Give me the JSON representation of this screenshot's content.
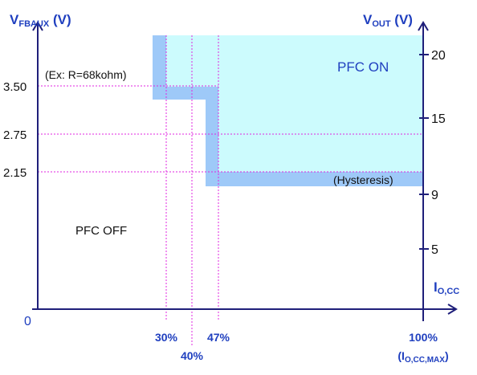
{
  "diagram": {
    "y_left_label": {
      "main": "V",
      "sub": "FBAUX",
      "tail": " (V)"
    },
    "y_right_label": {
      "main": "V",
      "sub": "OUT",
      "tail": " (V)"
    },
    "x_current_label": {
      "main": "I",
      "sub": "O,CC"
    },
    "x_max_label": {
      "main": "(I",
      "sub": "O,CC,MAX",
      "tail": ")"
    },
    "origin_label": "0",
    "left_ticks": [
      "3.50",
      "2.75",
      "2.15"
    ],
    "right_ticks": [
      "20",
      "15",
      "9",
      "5"
    ],
    "bottom_ticks": [
      "30%",
      "40%",
      "47%",
      "100%"
    ],
    "example_note": "(Ex: R=68kohm)",
    "region_on": "PFC ON",
    "region_off": "PFC OFF",
    "hysteresis_note": "(Hysteresis)",
    "colors": {
      "on_region": "#ccfbfd",
      "hysteresis_band": "#9ec9f8",
      "guides": "#e026e0",
      "axis": "#1f1f7a",
      "blue_text": "#1f3fbf"
    }
  }
}
